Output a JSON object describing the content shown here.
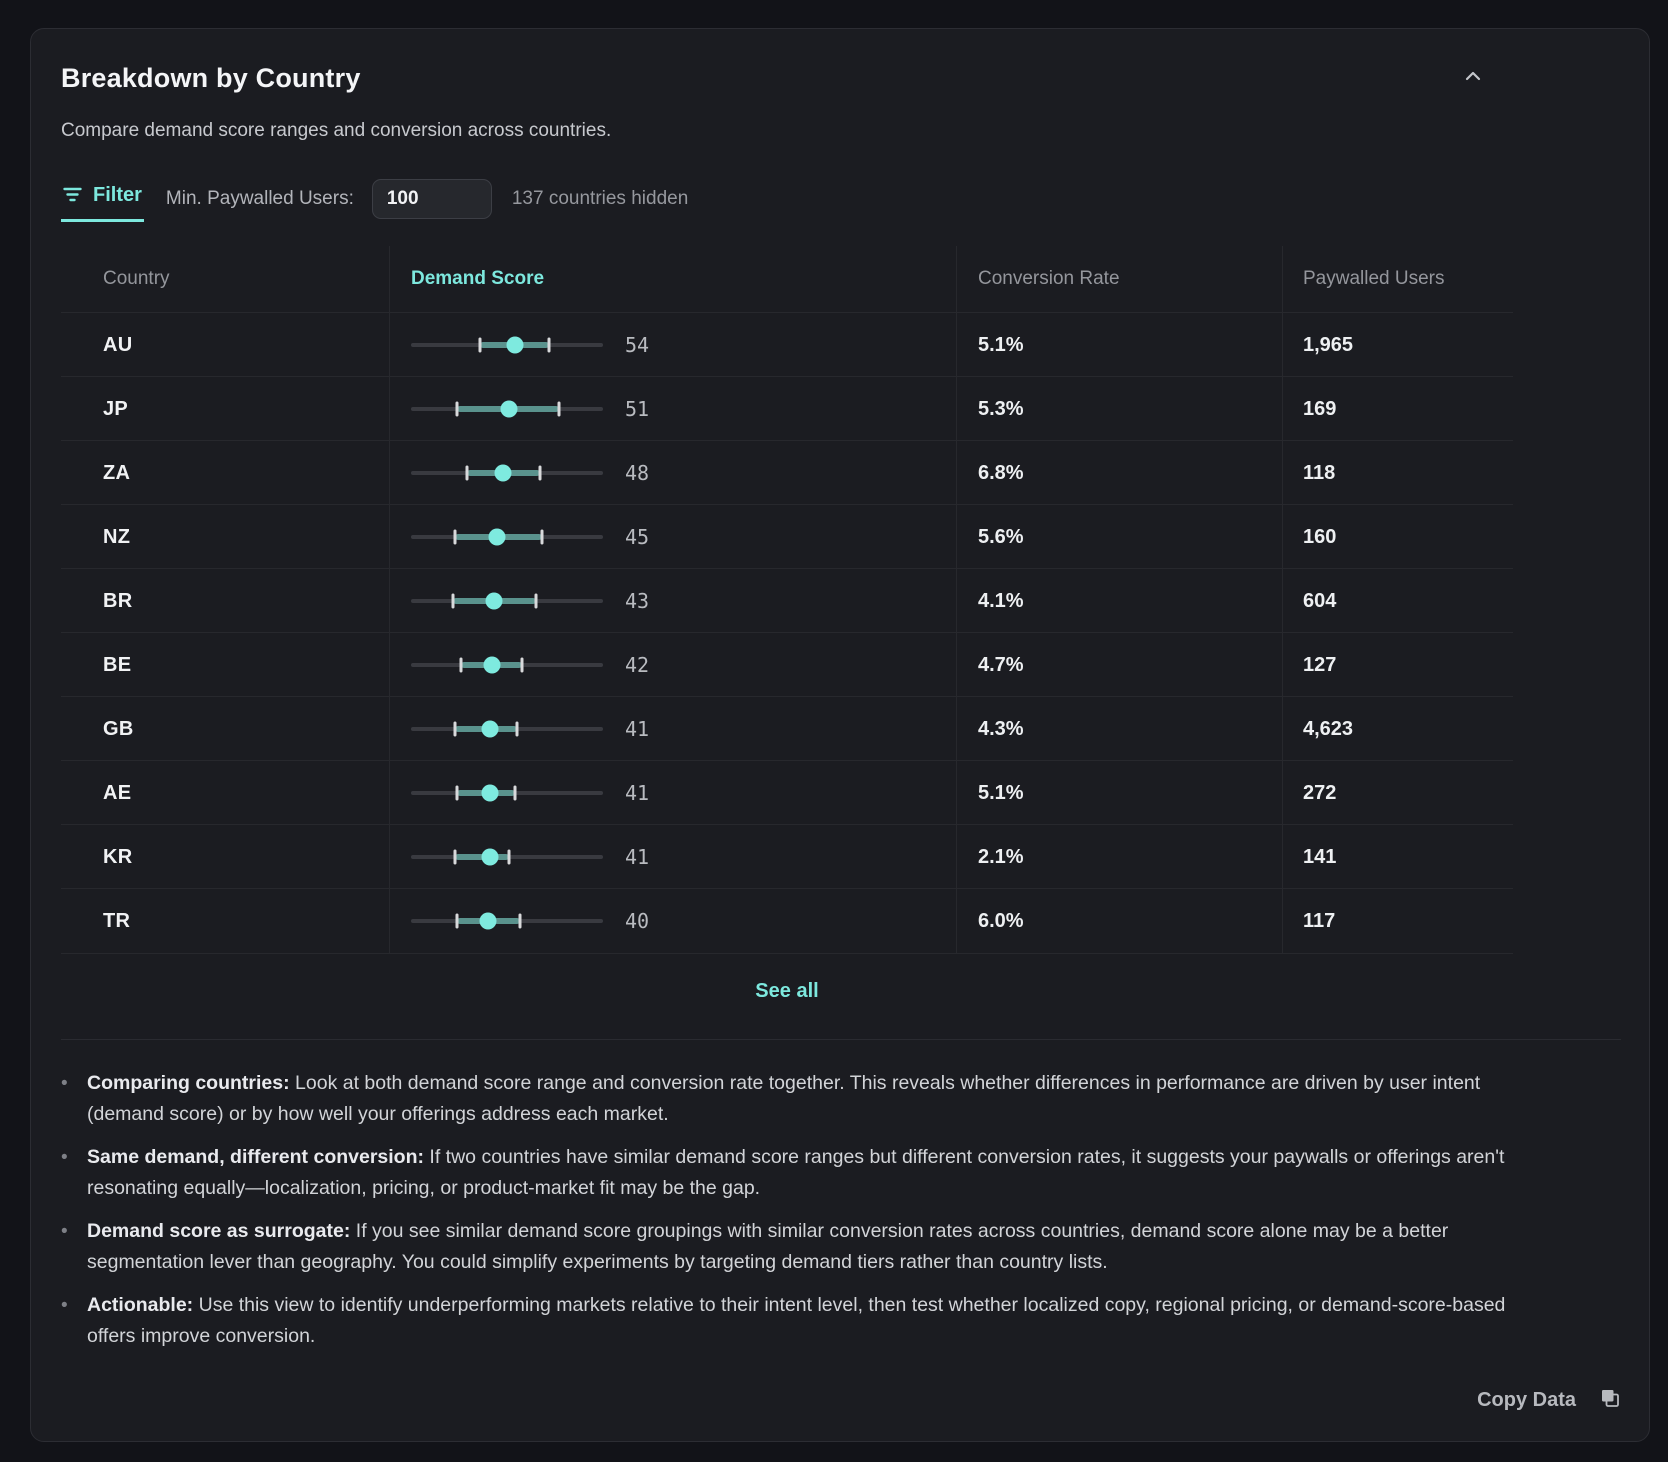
{
  "card": {
    "title": "Breakdown by Country",
    "subtitle": "Compare demand score ranges and conversion across countries."
  },
  "filter": {
    "label": "Filter",
    "min_paywalled_label": "Min. Paywalled Users:",
    "input_value": "100",
    "hidden_note": "137 countries hidden"
  },
  "table": {
    "columns": [
      "Country",
      "Demand Score",
      "Conversion Rate",
      "Paywalled Users"
    ],
    "sorted_column": "Demand Score",
    "scale": [
      0,
      100
    ],
    "rows": [
      {
        "country": "AU",
        "score": 54,
        "low": 36,
        "high": 72,
        "conversion": "5.1%",
        "paywalled": "1,965"
      },
      {
        "country": "JP",
        "score": 51,
        "low": 24,
        "high": 77,
        "conversion": "5.3%",
        "paywalled": "169"
      },
      {
        "country": "ZA",
        "score": 48,
        "low": 29,
        "high": 67,
        "conversion": "6.8%",
        "paywalled": "118"
      },
      {
        "country": "NZ",
        "score": 45,
        "low": 23,
        "high": 68,
        "conversion": "5.6%",
        "paywalled": "160"
      },
      {
        "country": "BR",
        "score": 43,
        "low": 22,
        "high": 65,
        "conversion": "4.1%",
        "paywalled": "604"
      },
      {
        "country": "BE",
        "score": 42,
        "low": 26,
        "high": 58,
        "conversion": "4.7%",
        "paywalled": "127"
      },
      {
        "country": "GB",
        "score": 41,
        "low": 23,
        "high": 55,
        "conversion": "4.3%",
        "paywalled": "4,623"
      },
      {
        "country": "AE",
        "score": 41,
        "low": 24,
        "high": 54,
        "conversion": "5.1%",
        "paywalled": "272"
      },
      {
        "country": "KR",
        "score": 41,
        "low": 23,
        "high": 51,
        "conversion": "2.1%",
        "paywalled": "141"
      },
      {
        "country": "TR",
        "score": 40,
        "low": 24,
        "high": 57,
        "conversion": "6.0%",
        "paywalled": "117"
      }
    ]
  },
  "see_all_label": "See all",
  "notes": [
    {
      "lead": "Comparing countries:",
      "text": "Look at both demand score range and conversion rate together. This reveals whether differences in performance are driven by user intent (demand score) or by how well your offerings address each market."
    },
    {
      "lead": "Same demand, different conversion:",
      "text": "If two countries have similar demand score ranges but different conversion rates, it suggests your paywalls or offerings aren't resonating equally—localization, pricing, or product-market fit may be the gap."
    },
    {
      "lead": "Demand score as surrogate:",
      "text": "If you see similar demand score groupings with similar conversion rates across countries, demand score alone may be a better segmentation lever than geography. You could simplify experiments by targeting demand tiers rather than country lists."
    },
    {
      "lead": "Actionable:",
      "text": "Use this view to identify underperforming markets relative to their intent level, then test whether localized copy, regional pricing, or demand-score-based offers improve conversion."
    }
  ],
  "footer": {
    "copy_label": "Copy Data"
  },
  "colors": {
    "accent_teal": "#7de8de",
    "range_fill": "#5a928d",
    "dot": "#7eeadf",
    "whisker": "#d8d9db",
    "card_bg": "#1b1c21",
    "page_bg": "#121318",
    "divider": "#27282d"
  }
}
